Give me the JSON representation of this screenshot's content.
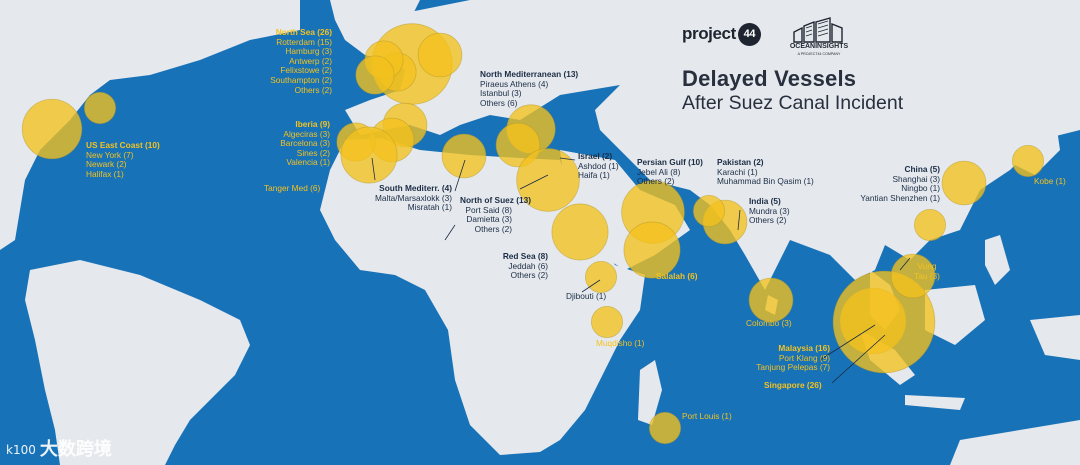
{
  "title": {
    "line1": "Delayed Vessels",
    "line2": "After Suez Canal Incident"
  },
  "brand": {
    "project44_text": "project",
    "project44_num": "44",
    "oceaninsights_name": "OCEANINSIGHTS",
    "oceaninsights_sub": "A PROJECT44 COMPANY"
  },
  "watermark": {
    "logo": "k100",
    "text": "大数跨境"
  },
  "colors": {
    "sea": "#1872b8",
    "land": "#e5e9ee",
    "bubble": "#f4c21e",
    "text": "#1b2c44"
  },
  "regions": {
    "north_sea": {
      "header": "North Sea (26)",
      "items": [
        "Rotterdam (15)",
        "Hamburg (3)",
        "Antwerp (2)",
        "Felixstowe (2)",
        "Southampton (2)",
        "Others (2)"
      ]
    },
    "north_med": {
      "header": "North Mediterranean (13)",
      "items": [
        "Piraeus Athens (4)",
        "Istanbul (3)",
        "Others (6)"
      ]
    },
    "us_east": {
      "header": "US East Coast (10)",
      "items": [
        "New York (7)",
        "Newark (2)",
        "Halifax (1)"
      ]
    },
    "iberia": {
      "header": "Iberia (9)",
      "items": [
        "Algeciras (3)",
        "Barcelona (3)",
        "Sines (2)",
        "Valencia (1)"
      ]
    },
    "tanger": {
      "label": "Tanger Med (6)"
    },
    "south_med": {
      "header": "South Mediterr. (4)",
      "items": [
        "Malta/Marsaxlokk (3)",
        "Misratah (1)"
      ]
    },
    "north_suez": {
      "header": "North of Suez (13)",
      "items": [
        "Port Said (8)",
        "Damietta (3)",
        "Others (2)"
      ]
    },
    "israel": {
      "header": "Israel (2)",
      "items": [
        "Ashdod (1)",
        "Haifa (1)"
      ]
    },
    "persian_gulf": {
      "header": "Persian Gulf (10)",
      "items": [
        "Jebel Ali (8)",
        "Others (2)"
      ]
    },
    "pakistan": {
      "header": "Pakistan (2)",
      "items": [
        "Karachi (1)",
        "Muhammad Bin Qasim (1)"
      ]
    },
    "india": {
      "header": "India (5)",
      "items": [
        "Mundra (3)",
        "Others (2)"
      ]
    },
    "china": {
      "header": "China (5)",
      "items": [
        "Shanghai (3)",
        "Ningbo (1)",
        "Yantian Shenzhen (1)"
      ]
    },
    "kobe": {
      "label": "Kobe (1)"
    },
    "red_sea": {
      "header": "Red Sea (8)",
      "items": [
        "Jeddah (6)",
        "Others (2)"
      ]
    },
    "djibouti": {
      "label": "Djibouti (1)"
    },
    "salalah": {
      "label": "Salalah (6)"
    },
    "colombo": {
      "label": "Colombo (3)"
    },
    "vung_tau": {
      "line1": "Vung",
      "line2": "Tau (3)"
    },
    "malaysia": {
      "header": "Malaysia (16)",
      "items": [
        "Port Klang (9)",
        "Tanjung Pelepas (7)"
      ]
    },
    "singapore": {
      "label": "Singapore (26)"
    },
    "muqdisho": {
      "label": "Muqdisho (1)"
    },
    "port_louis": {
      "label": "Port Louis (1)"
    }
  },
  "bubbles": [
    {
      "name": "Rotterdam",
      "value": 15
    },
    {
      "name": "Hamburg",
      "value": 3
    },
    {
      "name": "Antwerp",
      "value": 2
    },
    {
      "name": "Felixstowe",
      "value": 2
    },
    {
      "name": "Southampton",
      "value": 2
    },
    {
      "name": "Halifax",
      "value": 1
    },
    {
      "name": "New York",
      "value": 7
    },
    {
      "name": "Algeciras",
      "value": 3
    },
    {
      "name": "Barcelona",
      "value": 3
    },
    {
      "name": "Sines",
      "value": 2
    },
    {
      "name": "Tanger Med",
      "value": 6
    },
    {
      "name": "Malta/Marsaxlokk",
      "value": 3
    },
    {
      "name": "Piraeus Athens",
      "value": 4
    },
    {
      "name": "Istanbul",
      "value": 3
    },
    {
      "name": "Port Said",
      "value": 8
    },
    {
      "name": "Jeddah",
      "value": 6
    },
    {
      "name": "Djibouti",
      "value": 1
    },
    {
      "name": "Jebel Ali",
      "value": 8
    },
    {
      "name": "Salalah",
      "value": 6
    },
    {
      "name": "Mundra",
      "value": 3
    },
    {
      "name": "Karachi",
      "value": 1
    },
    {
      "name": "Colombo",
      "value": 3
    },
    {
      "name": "Port Klang",
      "value": 9
    },
    {
      "name": "Singapore",
      "value": 26
    },
    {
      "name": "Vung Tau",
      "value": 3
    },
    {
      "name": "Shanghai",
      "value": 3
    },
    {
      "name": "Yantian Shenzhen",
      "value": 1
    },
    {
      "name": "Kobe",
      "value": 1
    },
    {
      "name": "Muqdisho",
      "value": 1
    },
    {
      "name": "Port Louis",
      "value": 1
    }
  ]
}
